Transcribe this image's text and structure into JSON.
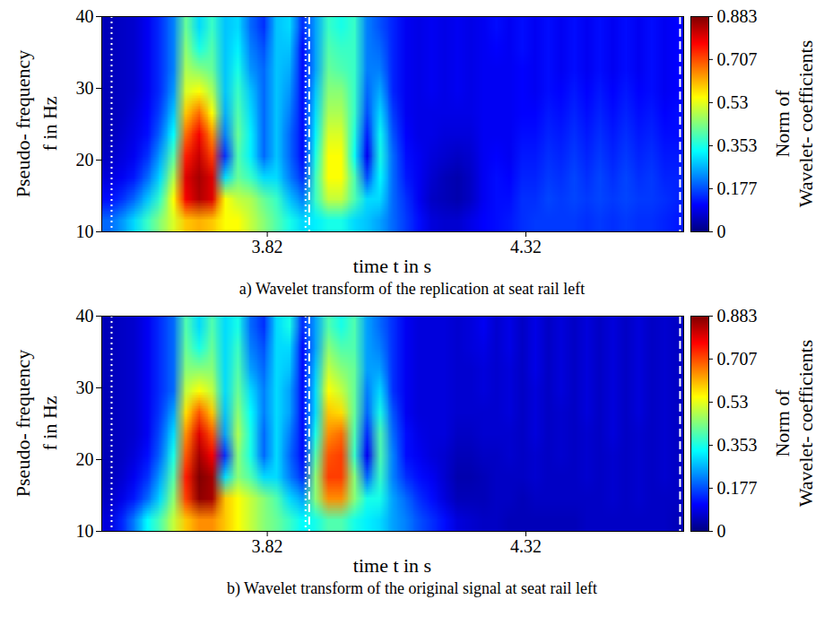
{
  "chart_data": [
    {
      "type": "heatmap",
      "caption": "a) Wavelet transform of the replication at seat rail left",
      "xlabel": "time t in s",
      "ylabel": [
        "Pseudo- frequency",
        "f in Hz"
      ],
      "xlim": [
        3.5,
        4.625
      ],
      "xticks": [
        3.82,
        4.32
      ],
      "ylim": [
        10,
        40
      ],
      "yticks": [
        10,
        20,
        30,
        40
      ],
      "color": "jet",
      "colorbar": {
        "label": "Norm of Wavelet- coefficients",
        "lim": [
          0,
          0.883
        ],
        "ticks": [
          0,
          0.177,
          0.353,
          0.53,
          0.707,
          0.883
        ]
      },
      "vlines": [
        {
          "x": 3.519,
          "line_style": "dotted"
        },
        {
          "x": 3.894,
          "line_style": "dotted"
        },
        {
          "x": 3.901,
          "line_style": "dashed"
        },
        {
          "x": 4.618,
          "line_style": "dashed"
        }
      ],
      "cell_x": [
        3.5,
        4.625
      ],
      "cell_y": [
        40,
        10
      ],
      "cells": [
        [
          0.05,
          0.05,
          0.05,
          0.05,
          0.05,
          0.05,
          0.06,
          0.08,
          0.12,
          0.2
        ],
        [
          0.06,
          0.06,
          0.06,
          0.06,
          0.06,
          0.07,
          0.08,
          0.1,
          0.15,
          0.24
        ],
        [
          0.07,
          0.07,
          0.07,
          0.07,
          0.08,
          0.09,
          0.1,
          0.13,
          0.2,
          0.3
        ],
        [
          0.1,
          0.1,
          0.1,
          0.1,
          0.11,
          0.12,
          0.15,
          0.2,
          0.28,
          0.38
        ],
        [
          0.15,
          0.15,
          0.15,
          0.15,
          0.17,
          0.2,
          0.25,
          0.3,
          0.38,
          0.45
        ],
        [
          0.22,
          0.22,
          0.22,
          0.24,
          0.28,
          0.33,
          0.4,
          0.48,
          0.55,
          0.52
        ],
        [
          0.42,
          0.45,
          0.48,
          0.52,
          0.6,
          0.68,
          0.75,
          0.8,
          0.78,
          0.6
        ],
        [
          0.3,
          0.35,
          0.45,
          0.55,
          0.68,
          0.78,
          0.82,
          0.85,
          0.84,
          0.62
        ],
        [
          0.38,
          0.4,
          0.42,
          0.48,
          0.55,
          0.65,
          0.72,
          0.8,
          0.8,
          0.6
        ],
        [
          0.28,
          0.28,
          0.28,
          0.28,
          0.26,
          0.22,
          0.15,
          0.3,
          0.55,
          0.55
        ],
        [
          0.3,
          0.32,
          0.35,
          0.38,
          0.4,
          0.42,
          0.4,
          0.42,
          0.5,
          0.55
        ],
        [
          0.2,
          0.22,
          0.24,
          0.28,
          0.3,
          0.32,
          0.32,
          0.38,
          0.48,
          0.5
        ],
        [
          0.15,
          0.18,
          0.2,
          0.2,
          0.2,
          0.2,
          0.2,
          0.3,
          0.42,
          0.45
        ],
        [
          0.28,
          0.28,
          0.28,
          0.28,
          0.28,
          0.28,
          0.28,
          0.3,
          0.38,
          0.4
        ],
        [
          0.3,
          0.28,
          0.26,
          0.24,
          0.22,
          0.2,
          0.2,
          0.22,
          0.28,
          0.35
        ],
        [
          0.15,
          0.12,
          0.12,
          0.12,
          0.12,
          0.12,
          0.12,
          0.15,
          0.22,
          0.3
        ],
        [
          0.25,
          0.25,
          0.25,
          0.28,
          0.3,
          0.32,
          0.35,
          0.38,
          0.38,
          0.32
        ],
        [
          0.38,
          0.4,
          0.42,
          0.45,
          0.48,
          0.52,
          0.55,
          0.55,
          0.5,
          0.35
        ],
        [
          0.35,
          0.38,
          0.4,
          0.45,
          0.48,
          0.52,
          0.55,
          0.55,
          0.5,
          0.35
        ],
        [
          0.38,
          0.38,
          0.38,
          0.38,
          0.38,
          0.36,
          0.34,
          0.4,
          0.4,
          0.3
        ],
        [
          0.22,
          0.22,
          0.22,
          0.2,
          0.18,
          0.14,
          0.1,
          0.18,
          0.3,
          0.28
        ],
        [
          0.18,
          0.2,
          0.22,
          0.26,
          0.3,
          0.34,
          0.35,
          0.33,
          0.3,
          0.25
        ],
        [
          0.14,
          0.14,
          0.14,
          0.14,
          0.16,
          0.18,
          0.2,
          0.2,
          0.2,
          0.2
        ],
        [
          0.1,
          0.1,
          0.1,
          0.1,
          0.1,
          0.11,
          0.12,
          0.13,
          0.15,
          0.16
        ],
        [
          0.09,
          0.09,
          0.09,
          0.09,
          0.09,
          0.09,
          0.1,
          0.1,
          0.1,
          0.12
        ],
        [
          0.1,
          0.1,
          0.1,
          0.1,
          0.09,
          0.09,
          0.08,
          0.07,
          0.06,
          0.08
        ],
        [
          0.09,
          0.09,
          0.09,
          0.09,
          0.09,
          0.08,
          0.07,
          0.05,
          0.05,
          0.07
        ],
        [
          0.1,
          0.1,
          0.1,
          0.1,
          0.09,
          0.08,
          0.06,
          0.04,
          0.04,
          0.07
        ],
        [
          0.09,
          0.09,
          0.09,
          0.09,
          0.09,
          0.08,
          0.07,
          0.06,
          0.06,
          0.09
        ],
        [
          0.1,
          0.1,
          0.1,
          0.1,
          0.1,
          0.1,
          0.1,
          0.1,
          0.1,
          0.11
        ],
        [
          0.12,
          0.11,
          0.1,
          0.1,
          0.1,
          0.1,
          0.11,
          0.12,
          0.12,
          0.12
        ],
        [
          0.1,
          0.1,
          0.1,
          0.1,
          0.1,
          0.1,
          0.1,
          0.11,
          0.12,
          0.13
        ],
        [
          0.12,
          0.12,
          0.11,
          0.11,
          0.11,
          0.12,
          0.13,
          0.14,
          0.15,
          0.15
        ],
        [
          0.1,
          0.1,
          0.1,
          0.1,
          0.11,
          0.12,
          0.13,
          0.14,
          0.15,
          0.16
        ],
        [
          0.12,
          0.12,
          0.12,
          0.12,
          0.13,
          0.14,
          0.15,
          0.16,
          0.17,
          0.16
        ],
        [
          0.1,
          0.1,
          0.1,
          0.11,
          0.12,
          0.13,
          0.14,
          0.15,
          0.16,
          0.16
        ],
        [
          0.12,
          0.12,
          0.12,
          0.13,
          0.14,
          0.15,
          0.16,
          0.17,
          0.17,
          0.16
        ],
        [
          0.1,
          0.1,
          0.1,
          0.11,
          0.12,
          0.13,
          0.14,
          0.15,
          0.16,
          0.15
        ],
        [
          0.12,
          0.12,
          0.12,
          0.13,
          0.14,
          0.15,
          0.16,
          0.17,
          0.17,
          0.16
        ],
        [
          0.1,
          0.1,
          0.1,
          0.11,
          0.12,
          0.13,
          0.14,
          0.15,
          0.16,
          0.15
        ],
        [
          0.12,
          0.12,
          0.12,
          0.13,
          0.14,
          0.15,
          0.16,
          0.17,
          0.17,
          0.16
        ],
        [
          0.1,
          0.1,
          0.1,
          0.11,
          0.12,
          0.13,
          0.14,
          0.15,
          0.16,
          0.15
        ],
        [
          0.12,
          0.12,
          0.12,
          0.12,
          0.13,
          0.14,
          0.15,
          0.16,
          0.16,
          0.15
        ],
        [
          0.1,
          0.1,
          0.1,
          0.1,
          0.11,
          0.12,
          0.13,
          0.14,
          0.15,
          0.14
        ],
        [
          0.11,
          0.11,
          0.11,
          0.11,
          0.12,
          0.12,
          0.13,
          0.14,
          0.14,
          0.13
        ]
      ]
    },
    {
      "type": "heatmap",
      "caption": "b) Wavelet transform of the original signal at seat rail left",
      "xlabel": "time t in s",
      "ylabel": [
        "Pseudo- frequency",
        "f in Hz"
      ],
      "xlim": [
        3.5,
        4.625
      ],
      "xticks": [
        3.82,
        4.32
      ],
      "ylim": [
        10,
        40
      ],
      "yticks": [
        10,
        20,
        30,
        40
      ],
      "color": "jet",
      "colorbar": {
        "label": "Norm of Wavelet- coefficients",
        "lim": [
          0,
          0.883
        ],
        "ticks": [
          0,
          0.177,
          0.353,
          0.53,
          0.707,
          0.883
        ]
      },
      "vlines": [
        {
          "x": 3.519,
          "line_style": "dotted"
        },
        {
          "x": 3.894,
          "line_style": "dotted"
        },
        {
          "x": 3.901,
          "line_style": "dashed"
        },
        {
          "x": 4.618,
          "line_style": "dashed"
        }
      ],
      "cell_x": [
        3.5,
        4.625
      ],
      "cell_y": [
        40,
        10
      ],
      "cells": [
        [
          0.05,
          0.05,
          0.05,
          0.05,
          0.05,
          0.05,
          0.05,
          0.05,
          0.06,
          0.08
        ],
        [
          0.06,
          0.06,
          0.06,
          0.06,
          0.06,
          0.06,
          0.06,
          0.07,
          0.09,
          0.14
        ],
        [
          0.07,
          0.07,
          0.07,
          0.07,
          0.07,
          0.07,
          0.08,
          0.1,
          0.13,
          0.22
        ],
        [
          0.1,
          0.1,
          0.1,
          0.1,
          0.1,
          0.1,
          0.12,
          0.15,
          0.2,
          0.33
        ],
        [
          0.15,
          0.15,
          0.15,
          0.15,
          0.16,
          0.18,
          0.2,
          0.25,
          0.3,
          0.4
        ],
        [
          0.2,
          0.2,
          0.2,
          0.2,
          0.25,
          0.3,
          0.35,
          0.4,
          0.45,
          0.5
        ],
        [
          0.4,
          0.42,
          0.45,
          0.5,
          0.58,
          0.65,
          0.7,
          0.75,
          0.72,
          0.6
        ],
        [
          0.3,
          0.35,
          0.45,
          0.55,
          0.7,
          0.8,
          0.85,
          0.883,
          0.87,
          0.65
        ],
        [
          0.4,
          0.42,
          0.45,
          0.5,
          0.6,
          0.7,
          0.78,
          0.85,
          0.85,
          0.65
        ],
        [
          0.3,
          0.3,
          0.3,
          0.3,
          0.28,
          0.25,
          0.15,
          0.3,
          0.6,
          0.6
        ],
        [
          0.35,
          0.38,
          0.4,
          0.42,
          0.45,
          0.48,
          0.45,
          0.45,
          0.55,
          0.55
        ],
        [
          0.2,
          0.22,
          0.25,
          0.3,
          0.33,
          0.35,
          0.35,
          0.4,
          0.5,
          0.5
        ],
        [
          0.15,
          0.18,
          0.2,
          0.22,
          0.22,
          0.2,
          0.2,
          0.3,
          0.45,
          0.45
        ],
        [
          0.3,
          0.3,
          0.3,
          0.3,
          0.3,
          0.3,
          0.3,
          0.3,
          0.4,
          0.42
        ],
        [
          0.35,
          0.3,
          0.28,
          0.25,
          0.25,
          0.22,
          0.2,
          0.22,
          0.3,
          0.38
        ],
        [
          0.15,
          0.12,
          0.12,
          0.12,
          0.12,
          0.12,
          0.12,
          0.15,
          0.25,
          0.33
        ],
        [
          0.25,
          0.25,
          0.28,
          0.3,
          0.3,
          0.35,
          0.4,
          0.45,
          0.45,
          0.35
        ],
        [
          0.4,
          0.45,
          0.5,
          0.55,
          0.6,
          0.65,
          0.7,
          0.72,
          0.65,
          0.4
        ],
        [
          0.35,
          0.4,
          0.45,
          0.5,
          0.58,
          0.68,
          0.72,
          0.72,
          0.65,
          0.4
        ],
        [
          0.4,
          0.4,
          0.42,
          0.42,
          0.42,
          0.4,
          0.38,
          0.45,
          0.45,
          0.35
        ],
        [
          0.25,
          0.25,
          0.25,
          0.22,
          0.2,
          0.15,
          0.1,
          0.2,
          0.35,
          0.32
        ],
        [
          0.2,
          0.22,
          0.25,
          0.3,
          0.35,
          0.4,
          0.4,
          0.38,
          0.35,
          0.3
        ],
        [
          0.15,
          0.15,
          0.15,
          0.15,
          0.18,
          0.2,
          0.22,
          0.22,
          0.25,
          0.25
        ],
        [
          0.1,
          0.1,
          0.1,
          0.1,
          0.1,
          0.12,
          0.12,
          0.15,
          0.2,
          0.22
        ],
        [
          0.08,
          0.08,
          0.08,
          0.08,
          0.08,
          0.09,
          0.1,
          0.12,
          0.15,
          0.18
        ],
        [
          0.08,
          0.08,
          0.08,
          0.08,
          0.08,
          0.08,
          0.08,
          0.1,
          0.12,
          0.15
        ],
        [
          0.08,
          0.08,
          0.08,
          0.08,
          0.08,
          0.08,
          0.07,
          0.07,
          0.08,
          0.12
        ],
        [
          0.07,
          0.07,
          0.07,
          0.07,
          0.07,
          0.06,
          0.05,
          0.04,
          0.05,
          0.08
        ],
        [
          0.08,
          0.08,
          0.07,
          0.07,
          0.07,
          0.06,
          0.05,
          0.04,
          0.05,
          0.07
        ],
        [
          0.1,
          0.09,
          0.08,
          0.08,
          0.07,
          0.07,
          0.06,
          0.05,
          0.05,
          0.06
        ],
        [
          0.07,
          0.07,
          0.07,
          0.07,
          0.07,
          0.07,
          0.06,
          0.06,
          0.06,
          0.06
        ],
        [
          0.09,
          0.09,
          0.08,
          0.08,
          0.08,
          0.07,
          0.07,
          0.06,
          0.06,
          0.05
        ],
        [
          0.06,
          0.06,
          0.06,
          0.06,
          0.06,
          0.06,
          0.06,
          0.06,
          0.05,
          0.05
        ],
        [
          0.09,
          0.09,
          0.09,
          0.08,
          0.08,
          0.08,
          0.07,
          0.07,
          0.06,
          0.05
        ],
        [
          0.06,
          0.06,
          0.06,
          0.06,
          0.06,
          0.06,
          0.06,
          0.06,
          0.06,
          0.05
        ],
        [
          0.08,
          0.08,
          0.08,
          0.08,
          0.07,
          0.07,
          0.07,
          0.06,
          0.06,
          0.05
        ],
        [
          0.06,
          0.06,
          0.06,
          0.06,
          0.06,
          0.06,
          0.06,
          0.06,
          0.06,
          0.05
        ],
        [
          0.08,
          0.08,
          0.08,
          0.08,
          0.08,
          0.07,
          0.07,
          0.07,
          0.06,
          0.06
        ],
        [
          0.06,
          0.06,
          0.06,
          0.06,
          0.06,
          0.06,
          0.06,
          0.06,
          0.06,
          0.06
        ],
        [
          0.08,
          0.08,
          0.08,
          0.08,
          0.08,
          0.08,
          0.07,
          0.07,
          0.07,
          0.06
        ],
        [
          0.06,
          0.06,
          0.06,
          0.06,
          0.06,
          0.06,
          0.06,
          0.06,
          0.06,
          0.06
        ],
        [
          0.08,
          0.08,
          0.08,
          0.08,
          0.08,
          0.07,
          0.07,
          0.07,
          0.07,
          0.06
        ],
        [
          0.06,
          0.06,
          0.06,
          0.06,
          0.06,
          0.06,
          0.06,
          0.06,
          0.06,
          0.06
        ],
        [
          0.07,
          0.07,
          0.07,
          0.07,
          0.07,
          0.07,
          0.07,
          0.07,
          0.06,
          0.06
        ],
        [
          0.06,
          0.06,
          0.06,
          0.06,
          0.06,
          0.06,
          0.06,
          0.06,
          0.06,
          0.05
        ]
      ]
    }
  ]
}
